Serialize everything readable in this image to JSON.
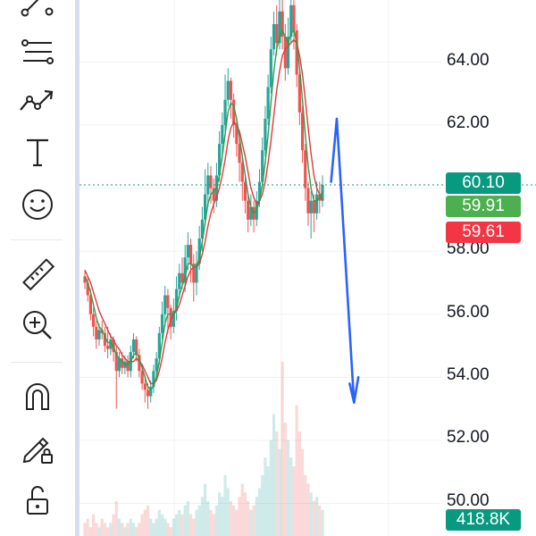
{
  "colors": {
    "up": "#26a69a",
    "down": "#ef5350",
    "ma_fast": "#2e9e4f",
    "ma_slow": "#e03b3b",
    "arrow": "#2962ff",
    "last_price_line": "#089981",
    "badge_last": "#089981",
    "badge_ma_fast": "#4caf50",
    "badge_ma_slow": "#f23645",
    "volume_badge": "#089981"
  },
  "toolbar": {
    "tools": [
      {
        "name": "trend-line-icon"
      },
      {
        "name": "fib-retracement-icon"
      },
      {
        "name": "forecast-arrow-icon"
      },
      {
        "name": "text-tool-icon"
      },
      {
        "name": "emoji-icon"
      },
      {
        "name": "ruler-icon"
      },
      {
        "name": "zoom-in-icon"
      },
      {
        "name": "magnet-icon"
      },
      {
        "name": "pencil-lock-icon"
      },
      {
        "name": "unlock-icon"
      }
    ]
  },
  "price_scale": {
    "labels": [
      "64.00",
      "62.00",
      "58.00",
      "56.00",
      "54.00",
      "52.00",
      "50.00"
    ]
  },
  "badges": {
    "last_price": "60.10",
    "ma_fast": "59.91",
    "ma_slow": "59.61",
    "volume": "418.8K"
  },
  "chart_data": {
    "type": "candlestick",
    "title": "",
    "ylim": [
      49.5,
      66.0
    ],
    "last_price": 60.1,
    "candles": [
      [
        57.2,
        57.0,
        57.4,
        56.8
      ],
      [
        57.0,
        56.6,
        57.2,
        56.4
      ],
      [
        56.6,
        56.0,
        56.8,
        55.8
      ],
      [
        56.0,
        55.6,
        56.2,
        55.3
      ],
      [
        55.6,
        55.2,
        55.8,
        54.9
      ],
      [
        55.2,
        55.5,
        55.7,
        55.0
      ],
      [
        55.5,
        55.4,
        55.8,
        55.2
      ],
      [
        55.4,
        55.0,
        55.6,
        54.8
      ],
      [
        55.0,
        54.9,
        55.6,
        54.6
      ],
      [
        54.9,
        55.2,
        55.4,
        54.7
      ],
      [
        55.2,
        54.8,
        55.3,
        54.5
      ],
      [
        54.8,
        54.2,
        55.0,
        53.0
      ],
      [
        54.2,
        54.6,
        54.8,
        54.0
      ],
      [
        54.6,
        54.3,
        54.8,
        54.1
      ],
      [
        54.3,
        54.5,
        54.7,
        54.1
      ],
      [
        54.5,
        54.2,
        54.7,
        54.0
      ],
      [
        54.2,
        54.8,
        55.0,
        54.0
      ],
      [
        54.8,
        55.2,
        55.4,
        54.6
      ],
      [
        55.2,
        54.7,
        55.3,
        54.5
      ],
      [
        54.7,
        54.2,
        54.9,
        54.0
      ],
      [
        54.2,
        53.8,
        54.4,
        53.6
      ],
      [
        53.8,
        53.6,
        54.0,
        53.2
      ],
      [
        53.6,
        53.4,
        53.8,
        53.0
      ],
      [
        53.4,
        53.7,
        53.9,
        53.2
      ],
      [
        53.7,
        54.2,
        54.4,
        53.5
      ],
      [
        54.2,
        54.6,
        54.8,
        54.0
      ],
      [
        54.6,
        55.4,
        55.6,
        54.4
      ],
      [
        55.4,
        56.0,
        56.4,
        55.2
      ],
      [
        56.0,
        56.6,
        56.9,
        55.6
      ],
      [
        56.6,
        56.2,
        56.8,
        55.4
      ],
      [
        56.2,
        55.6,
        56.3,
        55.2
      ],
      [
        55.6,
        56.1,
        56.5,
        55.4
      ],
      [
        56.1,
        56.8,
        57.2,
        55.8
      ],
      [
        56.8,
        57.3,
        57.6,
        56.5
      ],
      [
        57.3,
        57.0,
        57.8,
        56.8
      ],
      [
        57.0,
        57.8,
        58.2,
        56.7
      ],
      [
        57.8,
        58.2,
        58.6,
        57.4
      ],
      [
        58.2,
        57.6,
        58.4,
        57.0
      ],
      [
        57.6,
        57.0,
        57.9,
        56.4
      ],
      [
        57.0,
        57.6,
        58.0,
        56.6
      ],
      [
        57.6,
        58.4,
        58.8,
        57.4
      ],
      [
        58.4,
        59.0,
        59.4,
        58.0
      ],
      [
        59.0,
        59.8,
        60.6,
        58.8
      ],
      [
        59.8,
        60.4,
        60.8,
        59.4
      ],
      [
        60.4,
        60.0,
        60.7,
        59.5
      ],
      [
        60.0,
        59.6,
        60.3,
        59.2
      ],
      [
        59.6,
        60.4,
        60.8,
        59.4
      ],
      [
        60.4,
        61.4,
        61.8,
        60.2
      ],
      [
        61.4,
        62.0,
        62.4,
        61.0
      ],
      [
        62.0,
        62.8,
        63.6,
        61.8
      ],
      [
        62.8,
        63.4,
        63.8,
        62.6
      ],
      [
        63.4,
        62.8,
        63.5,
        62.2
      ],
      [
        62.8,
        62.0,
        63.0,
        61.6
      ],
      [
        62.0,
        61.4,
        62.2,
        61.0
      ],
      [
        61.4,
        60.8,
        61.6,
        60.2
      ],
      [
        60.8,
        60.2,
        61.0,
        59.6
      ],
      [
        60.2,
        59.6,
        60.4,
        59.2
      ],
      [
        59.6,
        59.0,
        59.8,
        58.6
      ],
      [
        59.0,
        59.4,
        59.8,
        58.8
      ],
      [
        59.4,
        59.0,
        59.6,
        58.6
      ],
      [
        59.0,
        59.6,
        59.9,
        58.8
      ],
      [
        59.6,
        60.2,
        60.6,
        59.4
      ],
      [
        60.2,
        61.2,
        61.6,
        60.0
      ],
      [
        61.2,
        62.2,
        62.6,
        61.0
      ],
      [
        62.2,
        63.2,
        63.6,
        62.0
      ],
      [
        63.2,
        64.4,
        64.8,
        63.0
      ],
      [
        64.4,
        65.2,
        65.6,
        64.2
      ],
      [
        65.2,
        64.6,
        65.8,
        64.2
      ],
      [
        64.6,
        65.6,
        66.0,
        64.4
      ],
      [
        65.6,
        64.8,
        66.0,
        64.4
      ],
      [
        64.8,
        63.8,
        65.2,
        63.4
      ],
      [
        63.8,
        64.8,
        65.4,
        63.6
      ],
      [
        64.8,
        65.8,
        66.0,
        64.6
      ],
      [
        65.8,
        65.0,
        66.0,
        64.4
      ],
      [
        65.0,
        63.6,
        65.2,
        63.2
      ],
      [
        63.6,
        62.4,
        63.8,
        62.0
      ],
      [
        62.4,
        61.2,
        62.6,
        60.8
      ],
      [
        61.2,
        60.0,
        61.4,
        59.6
      ],
      [
        60.0,
        59.2,
        60.2,
        58.8
      ],
      [
        59.2,
        59.6,
        59.9,
        58.4
      ],
      [
        59.6,
        59.2,
        59.8,
        58.6
      ],
      [
        59.2,
        59.8,
        60.2,
        59.0
      ],
      [
        59.8,
        59.6,
        60.2,
        59.2
      ],
      [
        59.6,
        60.1,
        60.4,
        59.4
      ]
    ],
    "ma_fast": [
      57.2,
      57.0,
      56.7,
      56.3,
      55.9,
      55.6,
      55.5,
      55.3,
      55.1,
      55.1,
      55.0,
      54.7,
      54.6,
      54.5,
      54.4,
      54.4,
      54.5,
      54.7,
      54.8,
      54.6,
      54.3,
      54.0,
      53.7,
      53.6,
      53.7,
      54.0,
      54.5,
      55.1,
      55.7,
      56.0,
      56.0,
      56.0,
      56.2,
      56.6,
      56.9,
      57.2,
      57.6,
      57.6,
      57.5,
      57.5,
      57.8,
      58.3,
      58.9,
      59.5,
      59.8,
      59.9,
      60.0,
      60.4,
      61.0,
      61.7,
      62.4,
      62.7,
      62.6,
      62.2,
      61.6,
      61.0,
      60.4,
      59.8,
      59.4,
      59.2,
      59.3,
      59.6,
      60.1,
      60.8,
      61.7,
      62.7,
      63.7,
      64.4,
      64.8,
      65.0,
      64.8,
      64.6,
      64.9,
      65.0,
      64.6,
      63.8,
      62.8,
      61.7,
      60.7,
      60.0,
      59.6,
      59.6,
      59.7,
      59.9
    ],
    "ma_slow": [
      57.4,
      57.2,
      57.0,
      56.7,
      56.4,
      56.1,
      55.9,
      55.7,
      55.5,
      55.3,
      55.2,
      55.0,
      54.9,
      54.7,
      54.6,
      54.5,
      54.5,
      54.5,
      54.6,
      54.5,
      54.4,
      54.2,
      54.0,
      53.8,
      53.8,
      53.9,
      54.2,
      54.6,
      55.1,
      55.5,
      55.8,
      56.0,
      56.1,
      56.3,
      56.6,
      56.9,
      57.2,
      57.4,
      57.5,
      57.5,
      57.6,
      57.9,
      58.3,
      58.8,
      59.2,
      59.5,
      59.7,
      60.0,
      60.4,
      60.9,
      61.5,
      61.9,
      62.1,
      62.0,
      61.8,
      61.4,
      61.0,
      60.5,
      60.0,
      59.7,
      59.5,
      59.6,
      59.8,
      60.2,
      60.8,
      61.5,
      62.3,
      63.1,
      63.7,
      64.2,
      64.4,
      64.5,
      64.6,
      64.7,
      64.6,
      64.2,
      63.6,
      62.8,
      61.9,
      61.1,
      60.4,
      60.0,
      59.8,
      59.61
    ],
    "volume": [
      3,
      4,
      2,
      5,
      3,
      2,
      4,
      3,
      2,
      3,
      5,
      8,
      4,
      3,
      2,
      3,
      4,
      3,
      2,
      3,
      5,
      6,
      7,
      4,
      3,
      4,
      6,
      5,
      4,
      3,
      2,
      4,
      5,
      6,
      5,
      7,
      8,
      5,
      4,
      6,
      7,
      9,
      12,
      8,
      6,
      5,
      7,
      10,
      9,
      14,
      11,
      8,
      7,
      6,
      9,
      12,
      10,
      8,
      6,
      7,
      9,
      11,
      14,
      18,
      16,
      22,
      28,
      24,
      20,
      40,
      26,
      22,
      18,
      16,
      30,
      24,
      20,
      14,
      12,
      10,
      8,
      9,
      7,
      6
    ],
    "forecast_path": [
      [
        86,
        60.2
      ],
      [
        88,
        62.2
      ],
      [
        94,
        53.2
      ]
    ],
    "forecast_arrowhead": [
      [
        92.5,
        53.8
      ],
      [
        94,
        53.2
      ],
      [
        95.5,
        54.0
      ]
    ]
  }
}
